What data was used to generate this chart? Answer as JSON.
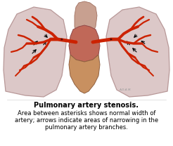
{
  "title": "Pulmonary artery stenosis.",
  "caption_line1": "Area between asterisks shows normal width of",
  "caption_line2": "artery; arrows indicate areas of narrowing in the",
  "caption_line3": "pulmonary artery branches.",
  "bg_color": "#ffffff",
  "lung_color": "#dcc8c8",
  "lung_edge_color": "#b89898",
  "artery_color": "#cc2200",
  "heart_upper_color": "#c87060",
  "heart_lower_color": "#d08858",
  "title_fontsize": 7.0,
  "caption_fontsize": 6.0,
  "fig_width": 2.46,
  "fig_height": 2.08,
  "dpi": 100
}
